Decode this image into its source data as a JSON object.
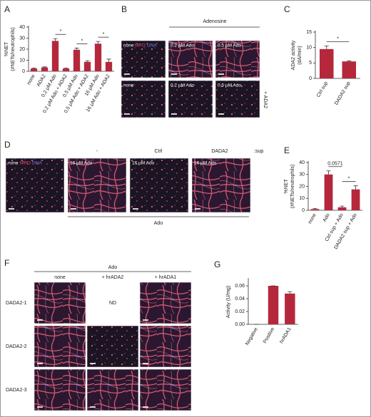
{
  "chart_data": [
    {
      "type": "bar",
      "panel": "A",
      "ylabel": [
        "%NET",
        "(#NETs/neutrophils)"
      ],
      "categories": [
        "none",
        "ADA2",
        "0.2 µM Ado",
        "0.2 µM Ado + ADA2",
        "0.5 µM Ado",
        "0.5 µM Ado + ADA2",
        "16 µM Ado",
        "16 µM Ado + ADA2"
      ],
      "values": [
        2.5,
        3.5,
        27.5,
        2.5,
        19.5,
        8.5,
        25,
        8.5
      ],
      "errors": [
        0.5,
        0.5,
        2,
        0.5,
        1.5,
        1,
        2,
        2.5
      ],
      "color": "#b5283c",
      "ylim": [
        0,
        40
      ],
      "yticks": [
        0,
        10,
        20,
        30,
        40
      ],
      "annotations": [
        {
          "text": "*",
          "span": [
            2,
            3
          ]
        },
        {
          "text": "*",
          "span": [
            4,
            5
          ]
        },
        {
          "text": "*",
          "span": [
            6,
            7
          ]
        }
      ]
    },
    {
      "type": "bar",
      "panel": "C",
      "ylabel": [
        "ADA2 activity",
        "(dA/min)"
      ],
      "categories": [
        "Ctrl sup",
        "DADA2 sup"
      ],
      "values": [
        9.5,
        5.5
      ],
      "errors": [
        1,
        0.2
      ],
      "color": "#b5283c",
      "ylim": [
        0,
        15
      ],
      "yticks": [
        0,
        5,
        10,
        15
      ],
      "annotations": [
        {
          "text": "*",
          "span": [
            0,
            1
          ]
        }
      ]
    },
    {
      "type": "bar",
      "panel": "E",
      "ylabel": [
        "%NET",
        "(#NETs/neutrophils)"
      ],
      "categories": [
        "none",
        "Ado",
        "Ctrl sup + Ado",
        "DADA2 sup + Ado"
      ],
      "values": [
        1,
        30,
        2.5,
        17.5
      ],
      "errors": [
        0.5,
        3,
        1,
        3
      ],
      "color": "#b5283c",
      "ylim": [
        0,
        40
      ],
      "yticks": [
        0,
        10,
        20,
        30,
        40
      ],
      "annotations": [
        {
          "text": "0.0571",
          "span": [
            1,
            2
          ]
        },
        {
          "text": "*",
          "span": [
            2,
            3
          ]
        }
      ]
    },
    {
      "type": "bar",
      "panel": "G",
      "ylabel": [
        "Activity (U/mg)"
      ],
      "categories": [
        "Negative",
        "Positive",
        "hrADA1"
      ],
      "values": [
        0,
        0.06,
        0.048
      ],
      "errors": [
        0,
        0,
        0.003
      ],
      "color": "#b5283c",
      "ylim": [
        0,
        0.07
      ],
      "yticks": [
        {
          "value": 0,
          "label": "0.00"
        },
        {
          "value": 0.02,
          "label": "0.02"
        },
        {
          "value": 0.04,
          "label": "0.04"
        },
        {
          "value": 0.06,
          "label": "0.06"
        }
      ],
      "annotations": []
    }
  ],
  "image_panels": {
    "B": {
      "panel": "B",
      "header": "Adenosine",
      "side_label": "+ ADA2",
      "legend": [
        "MPO",
        "DNA"
      ],
      "rows": [
        [
          "none",
          "0.2 µM Ado",
          "0.5 µM Ado"
        ],
        [
          "none",
          "0.2 µM Ado",
          "0.5 µM Ado"
        ]
      ]
    },
    "D": {
      "panel": "D",
      "legend": [
        "MPO",
        "DNA"
      ],
      "column_headers": [
        "-",
        "Ctrl",
        "DADA2",
        ":sup"
      ],
      "images": [
        "none",
        "16 µM Ado",
        "16 µM Ado",
        "16 µM Ado"
      ],
      "footer": "Ado"
    },
    "F": {
      "panel": "F",
      "header": "Ado",
      "column_headers": [
        "none",
        "+ hrADA2",
        "+ hrADA1"
      ],
      "row_labels": [
        "DADA2-1",
        "DADA2-2",
        "DADA2-3"
      ],
      "missing": "ND"
    }
  }
}
